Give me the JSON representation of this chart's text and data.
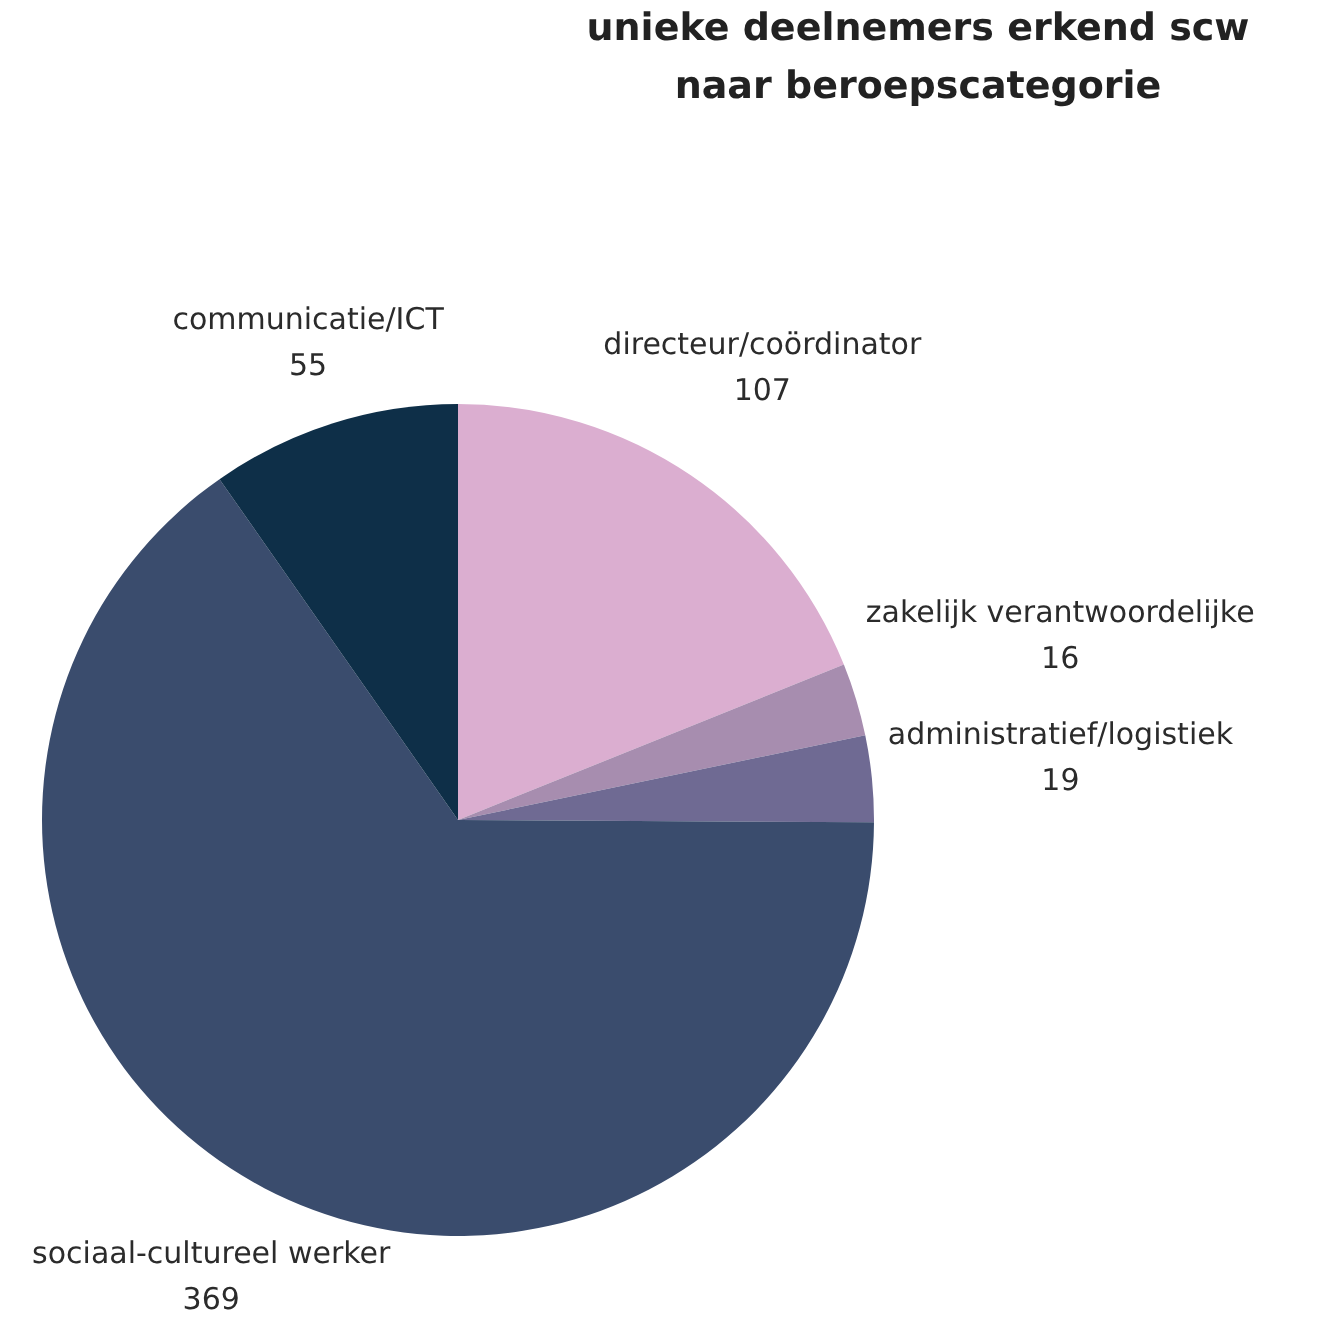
{
  "chart_data": {
    "type": "pie",
    "title": "unieke deelnemers erkend scw naar beroepscategorie",
    "categories": [
      "directeur/coördinator",
      "zakelijk verantwoordelijke",
      "administratief/logistiek",
      "sociaal-cultureel werker",
      "communicatie/ICT"
    ],
    "values": [
      107,
      16,
      19,
      369,
      55
    ],
    "colors": [
      "#dbaed0",
      "#a78daf",
      "#6f6a93",
      "#3a4c6d",
      "#0e2f48"
    ],
    "data_labels": true,
    "legend": false
  }
}
